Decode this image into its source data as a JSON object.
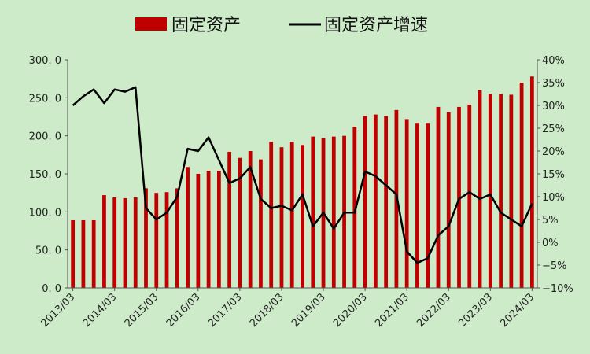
{
  "chart_data": {
    "type": "bar+line",
    "legend": [
      {
        "label": "固定资产",
        "kind": "bar",
        "color": "#c00000"
      },
      {
        "label": "固定资产增速",
        "kind": "line",
        "color": "#000000"
      }
    ],
    "x": [
      "2013/03",
      "2013/06",
      "2013/09",
      "2013/12",
      "2014/03",
      "2014/06",
      "2014/09",
      "2014/12",
      "2015/03",
      "2015/06",
      "2015/09",
      "2015/12",
      "2016/03",
      "2016/06",
      "2016/09",
      "2016/12",
      "2017/03",
      "2017/06",
      "2017/09",
      "2017/12",
      "2018/03",
      "2018/06",
      "2018/09",
      "2018/12",
      "2019/03",
      "2019/06",
      "2019/09",
      "2019/12",
      "2020/03",
      "2020/06",
      "2020/09",
      "2020/12",
      "2021/03",
      "2021/06",
      "2021/09",
      "2021/12",
      "2022/03",
      "2022/06",
      "2022/09",
      "2022/12",
      "2023/03",
      "2023/06",
      "2023/09",
      "2023/12",
      "2024/03"
    ],
    "x_tick_labels": [
      "2013/03",
      "2014/03",
      "2015/03",
      "2016/03",
      "2017/03",
      "2018/03",
      "2019/03",
      "2020/03",
      "2021/03",
      "2022/03",
      "2023/03",
      "2024/03"
    ],
    "series": [
      {
        "name": "固定资产",
        "type": "bar",
        "axis": "left",
        "color": "#c00000",
        "values": [
          89,
          89,
          89,
          122,
          119,
          118,
          119,
          131,
          125,
          126,
          131,
          159,
          150,
          154,
          154,
          179,
          171,
          180,
          169,
          192,
          185,
          192,
          188,
          199,
          197,
          199,
          200,
          212,
          226,
          228,
          226,
          234,
          222,
          217,
          217,
          238,
          231,
          238,
          241,
          260,
          255,
          255,
          254,
          270,
          278
        ]
      },
      {
        "name": "固定资产增速",
        "type": "line",
        "axis": "right",
        "color": "#000000",
        "values": [
          30.0,
          32.0,
          33.5,
          30.5,
          33.5,
          33.0,
          34.0,
          7.5,
          5.0,
          6.5,
          10.0,
          20.5,
          20.0,
          23.0,
          18.0,
          13.0,
          14.0,
          16.5,
          9.5,
          7.5,
          8.0,
          7.0,
          10.5,
          3.5,
          6.5,
          3.0,
          6.5,
          6.5,
          15.5,
          14.5,
          12.5,
          10.5,
          -2.0,
          -4.5,
          -3.5,
          1.5,
          3.5,
          9.5,
          11.0,
          9.5,
          10.5,
          6.5,
          5.0,
          3.5,
          8.5
        ]
      }
    ],
    "y_left": {
      "min": 0,
      "max": 300,
      "step": 50,
      "tick_labels": [
        "0. 0",
        "50. 0",
        "100. 0",
        "150. 0",
        "200. 0",
        "250. 0",
        "300. 0"
      ]
    },
    "y_right": {
      "min": -10,
      "max": 40,
      "step": 5,
      "tick_labels": [
        "−10%",
        "−5%",
        "0%",
        "5%",
        "10%",
        "15%",
        "20%",
        "25%",
        "30%",
        "35%",
        "40%"
      ]
    },
    "legend_position": "top-center",
    "grid": false
  }
}
